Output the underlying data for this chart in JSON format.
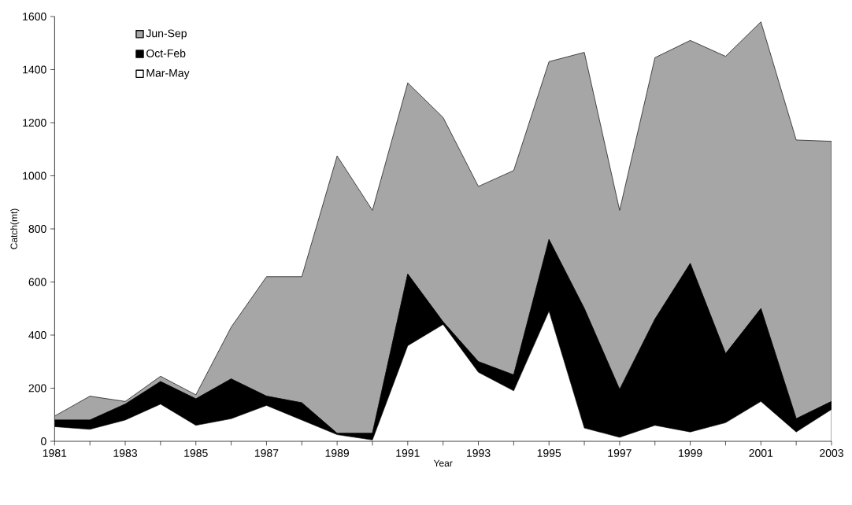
{
  "chart_data": {
    "type": "area",
    "stacked": true,
    "xlabel": "Year",
    "ylabel": "Catch(mt)",
    "x": [
      1981,
      1982,
      1983,
      1984,
      1985,
      1986,
      1987,
      1988,
      1989,
      1990,
      1991,
      1992,
      1993,
      1994,
      1995,
      1996,
      1997,
      1998,
      1999,
      2000,
      2001,
      2002,
      2003
    ],
    "series": [
      {
        "name": "Mar-May",
        "color": "#ffffff",
        "values": [
          55,
          45,
          80,
          140,
          60,
          85,
          135,
          80,
          25,
          5,
          360,
          440,
          260,
          190,
          490,
          50,
          15,
          60,
          35,
          70,
          150,
          35,
          120
        ]
      },
      {
        "name": "Oct-Feb",
        "color": "#000000",
        "values": [
          25,
          35,
          60,
          85,
          100,
          150,
          35,
          65,
          5,
          25,
          270,
          10,
          40,
          60,
          270,
          450,
          180,
          400,
          635,
          260,
          350,
          50,
          30
        ]
      },
      {
        "name": "Jun-Sep",
        "color": "#a6a6a6",
        "values": [
          15,
          90,
          10,
          20,
          15,
          195,
          450,
          475,
          1045,
          840,
          720,
          770,
          660,
          770,
          670,
          965,
          675,
          985,
          840,
          1120,
          1080,
          1050,
          980
        ]
      }
    ],
    "xlim": [
      1981,
      2003
    ],
    "xticks": [
      1981,
      1983,
      1985,
      1987,
      1989,
      1991,
      1993,
      1995,
      1997,
      1999,
      2001,
      2003
    ],
    "ylim": [
      0,
      1600
    ],
    "yticks": [
      0,
      200,
      400,
      600,
      800,
      1000,
      1200,
      1400,
      1600
    ],
    "legend": "top left",
    "grid": false
  }
}
